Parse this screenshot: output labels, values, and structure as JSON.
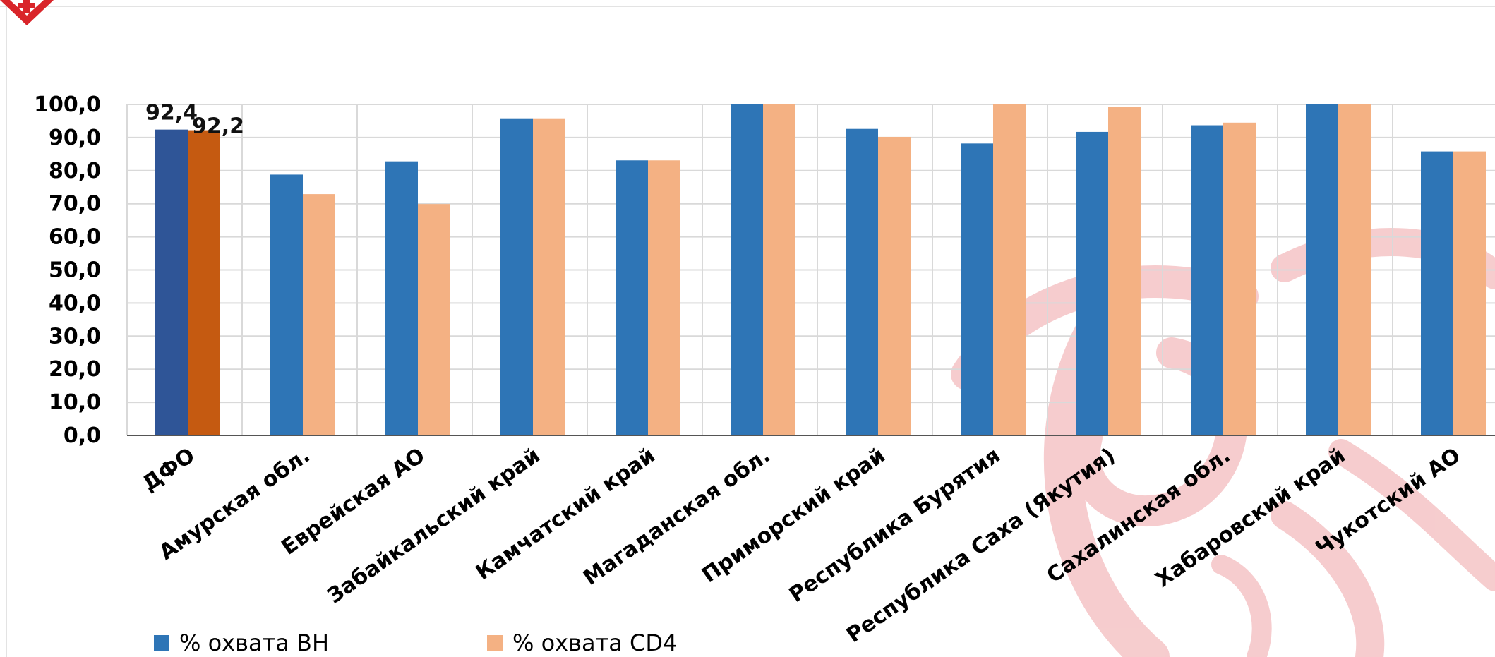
{
  "chart_data": {
    "type": "bar",
    "categories": [
      "ДФО",
      "Амурская обл.",
      "Еврейская АО",
      "Забайкальский край",
      "Камчатский край",
      "Магаданская обл.",
      "Приморский край",
      "Республика Бурятия",
      "Республика Саха (Якутия)",
      "Сахалинская обл.",
      "Хабаровский край",
      "Чукотский АО"
    ],
    "series": [
      {
        "name": "% охвата ВН",
        "color": "#2e75b6",
        "highlight_color": "#2f5597",
        "values": [
          92.4,
          78.8,
          82.8,
          95.8,
          83.1,
          100.0,
          92.6,
          88.2,
          91.7,
          93.7,
          100.0,
          85.8
        ]
      },
      {
        "name": "% охвата CD4",
        "color": "#f4b183",
        "highlight_color": "#c55a11",
        "values": [
          92.2,
          72.9,
          69.9,
          95.8,
          83.1,
          100.0,
          90.2,
          100.0,
          99.3,
          94.5,
          100.0,
          85.8
        ]
      }
    ],
    "data_labels": [
      "92,4",
      "92,2"
    ],
    "y_ticks": [
      "0,0",
      "10,0",
      "20,0",
      "30,0",
      "40,0",
      "50,0",
      "60,0",
      "70,0",
      "80,0",
      "90,0",
      "100,0"
    ],
    "ylim": [
      0,
      100
    ],
    "grid": true,
    "legend_position": "bottom-left",
    "title": "",
    "xlabel": "",
    "ylabel": ""
  }
}
